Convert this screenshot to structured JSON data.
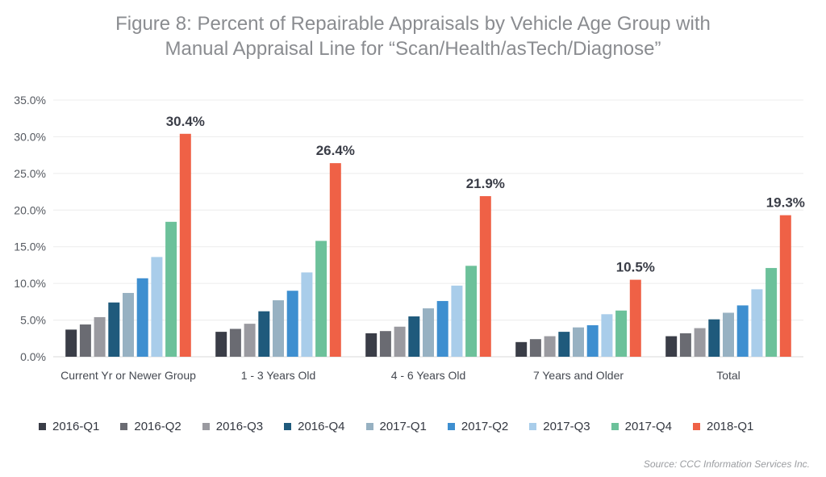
{
  "title": {
    "line1": "Figure 8: Percent of Repairable Appraisals by Vehicle Age Group with",
    "line2": "Manual Appraisal Line for “Scan/Health/asTech/Diagnose”"
  },
  "source": "Source: CCC Information Services Inc.",
  "colors": {
    "2016-Q1": "#3a3d47",
    "2016-Q2": "#6a6b72",
    "2016-Q3": "#9a9aa0",
    "2016-Q4": "#1f5a7c",
    "2017-Q1": "#97b1c2",
    "2017-Q2": "#3e8fd0",
    "2017-Q3": "#a9cdea",
    "2017-Q4": "#6cc19a",
    "2018-Q1": "#ef6146"
  },
  "chart_data": {
    "type": "bar",
    "categories": [
      "Current Yr or Newer Group",
      "1 - 3 Years Old",
      "4 - 6 Years Old",
      "7 Years and Older",
      "Total"
    ],
    "ylim": [
      0,
      35
    ],
    "yticks": [
      "0.0%",
      "5.0%",
      "10.0%",
      "15.0%",
      "20.0%",
      "25.0%",
      "30.0%",
      "35.0%"
    ],
    "grid": true,
    "legend_position": "bottom",
    "series": [
      {
        "name": "2016-Q1",
        "values": [
          3.7,
          3.4,
          3.2,
          2.0,
          2.8
        ]
      },
      {
        "name": "2016-Q2",
        "values": [
          4.4,
          3.8,
          3.5,
          2.4,
          3.2
        ]
      },
      {
        "name": "2016-Q3",
        "values": [
          5.4,
          4.5,
          4.1,
          2.8,
          3.9
        ]
      },
      {
        "name": "2016-Q4",
        "values": [
          7.4,
          6.2,
          5.5,
          3.4,
          5.1
        ]
      },
      {
        "name": "2017-Q1",
        "values": [
          8.7,
          7.7,
          6.6,
          4.0,
          6.0
        ]
      },
      {
        "name": "2017-Q2",
        "values": [
          10.7,
          9.0,
          7.6,
          4.3,
          7.0
        ]
      },
      {
        "name": "2017-Q3",
        "values": [
          13.6,
          11.5,
          9.7,
          5.8,
          9.2
        ]
      },
      {
        "name": "2017-Q4",
        "values": [
          18.4,
          15.8,
          12.4,
          6.3,
          12.1
        ]
      },
      {
        "name": "2018-Q1",
        "values": [
          30.4,
          26.4,
          21.9,
          10.5,
          19.3
        ]
      }
    ],
    "data_labels": [
      "30.4%",
      "26.4%",
      "21.9%",
      "10.5%",
      "19.3%"
    ]
  }
}
